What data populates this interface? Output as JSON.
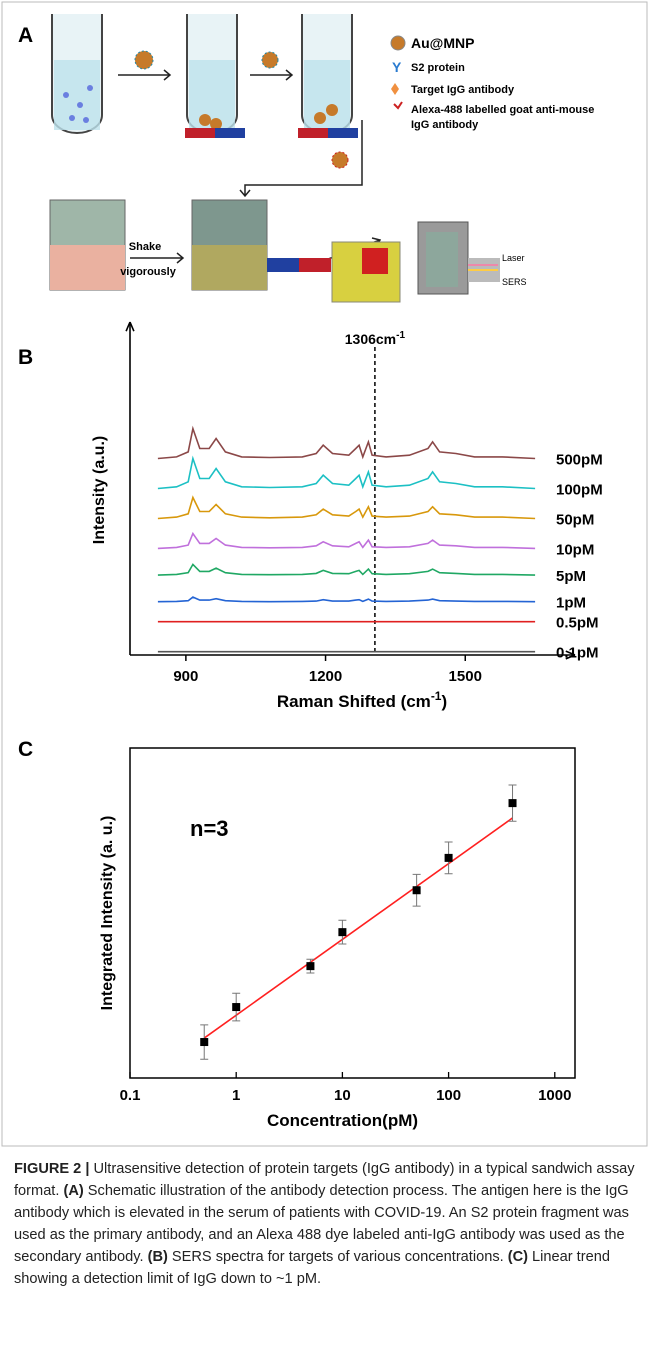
{
  "figure": {
    "panels": [
      "A",
      "B",
      "C"
    ],
    "legend": [
      {
        "lines": [
          "Au@MNP"
        ]
      },
      {
        "lines": [
          "S2 protein"
        ]
      },
      {
        "lines": [
          "Target IgG antibody"
        ]
      },
      {
        "lines": [
          "Alexa-488 labelled goat anti-mouse",
          "IgG antibody"
        ]
      }
    ],
    "step": [
      "Shake",
      "vigorously"
    ],
    "instrument": [
      "Laser",
      "SERS"
    ]
  },
  "chart_data": [
    {
      "type": "line",
      "xlabel": "Raman Shifted (cm",
      "xlabel_sup": "-1",
      "xlabel_end": ")",
      "ylabel": "Intensity (a.u.)",
      "annotation": {
        "text": "1306cm",
        "sup": "-1",
        "x": 1306
      },
      "xlim": [
        780,
        1725
      ],
      "ylim": [
        0,
        100
      ],
      "xticks": [
        900,
        1200,
        1500
      ],
      "x": [
        840,
        880,
        905,
        915,
        930,
        950,
        965,
        985,
        1020,
        1080,
        1150,
        1180,
        1195,
        1215,
        1250,
        1265,
        1272,
        1280,
        1292,
        1300,
        1330,
        1380,
        1420,
        1430,
        1445,
        1480,
        1520,
        1580,
        1650
      ],
      "series": [
        {
          "name": "500pM",
          "color": "#8b4848",
          "values": [
            59,
            59.5,
            61,
            68,
            62,
            62,
            65,
            61,
            59.5,
            59.3,
            59.5,
            60.5,
            63,
            60.5,
            60,
            62,
            63,
            59.5,
            64,
            60,
            59.5,
            60,
            62,
            64,
            61,
            60.5,
            59.5,
            59.5,
            59
          ]
        },
        {
          "name": "100pM",
          "color": "#1cc0c4",
          "values": [
            50,
            50.5,
            52,
            59,
            53,
            53,
            56,
            52,
            50.5,
            50.3,
            50.5,
            51.5,
            54,
            51.5,
            51,
            53,
            54,
            50.5,
            55,
            51,
            50.5,
            51,
            53,
            55,
            52,
            51.5,
            50.5,
            50.5,
            50
          ]
        },
        {
          "name": "50pM",
          "color": "#d8980c",
          "values": [
            41,
            41.4,
            42.4,
            47.3,
            43.1,
            43.1,
            45.2,
            42.4,
            41.4,
            41.2,
            41.4,
            42.1,
            43.8,
            42.1,
            41.7,
            43.1,
            43.8,
            41.4,
            44.5,
            41.7,
            41.4,
            41.7,
            43.1,
            44.5,
            42.4,
            42.1,
            41.4,
            41.4,
            41
          ]
        },
        {
          "name": "10pM",
          "color": "#c070dc",
          "values": [
            32,
            32.3,
            33,
            36.5,
            33.5,
            33.5,
            35,
            33,
            32.3,
            32.2,
            32.3,
            32.8,
            34,
            32.8,
            32.5,
            33.5,
            34,
            32.3,
            34.5,
            32.5,
            32.3,
            32.5,
            33.5,
            34.5,
            33,
            32.8,
            32.3,
            32.3,
            32
          ]
        },
        {
          "name": "5pM",
          "color": "#20a864",
          "values": [
            24,
            24.2,
            24.7,
            27.2,
            25.1,
            25.1,
            26.1,
            24.7,
            24.2,
            24.1,
            24.2,
            24.5,
            25.4,
            24.5,
            24.4,
            25.1,
            25.4,
            24.2,
            25.8,
            24.4,
            24.2,
            24.4,
            25.1,
            25.8,
            24.7,
            24.5,
            24.2,
            24.2,
            24
          ]
        },
        {
          "name": "1pM",
          "color": "#2464d4",
          "values": [
            16,
            16.1,
            16.3,
            17.4,
            16.5,
            16.5,
            16.9,
            16.3,
            16.1,
            16,
            16.1,
            16.2,
            16.6,
            16.2,
            16.2,
            16.5,
            16.6,
            16.1,
            16.8,
            16.2,
            16.1,
            16.2,
            16.5,
            16.8,
            16.3,
            16.2,
            16.1,
            16.1,
            16
          ]
        },
        {
          "name": "0.5pM",
          "color": "#e02020",
          "values": [
            10,
            10,
            10,
            10,
            10,
            10,
            10,
            10,
            10,
            10,
            10,
            10,
            10,
            10,
            10,
            10,
            10,
            10,
            10,
            10,
            10,
            10,
            10,
            10,
            10,
            10,
            10,
            10,
            10
          ]
        },
        {
          "name": "0.1pM",
          "color": "#555555",
          "values": [
            1,
            1,
            1,
            1,
            1,
            1,
            1,
            1,
            1,
            1,
            1,
            1,
            1,
            1,
            1,
            1,
            1,
            1,
            1,
            1,
            1,
            1,
            1,
            1,
            1,
            1,
            1,
            1,
            1
          ]
        }
      ]
    },
    {
      "type": "scatter",
      "xlabel": "Concentration(pM)",
      "ylabel": "Integrated Intensity (a. u.)",
      "annotation": "n=3",
      "xscale": "log",
      "xlim": [
        0.1,
        1550
      ],
      "ylim": [
        0,
        100
      ],
      "xticks": [
        0.1,
        1,
        10,
        100,
        1000
      ],
      "series": [
        {
          "color": "#000000",
          "x": [
            0.5,
            1,
            5,
            10,
            50,
            100,
            400
          ],
          "values": [
            10.9,
            21.5,
            33.9,
            44.2,
            56.9,
            66.7,
            83.3
          ],
          "errors": [
            5.2,
            4.2,
            2.1,
            3.6,
            4.8,
            4.8,
            5.5
          ]
        }
      ],
      "fit": {
        "color": "#ff2020",
        "x": [
          0.5,
          400
        ],
        "y": [
          12.1,
          78.8
        ]
      }
    }
  ],
  "caption": {
    "label": "FIGURE 2 |",
    "intro": " Ultrasensitive detection of protein targets (IgG antibody) in a typical sandwich assay format. ",
    "items": [
      {
        "ref": "(A)",
        "text": " Schematic illustration of the antibody detection process. The antigen here is the IgG antibody which is elevated in the serum of patients with COVID-19. An S2 protein fragment was used as the primary antibody, and an Alexa 488 dye labeled anti-IgG antibody was used as the secondary antibody. "
      },
      {
        "ref": "(B)",
        "text": " SERS spectra for targets of various concentrations. "
      },
      {
        "ref": "(C)",
        "text": " Linear trend showing a detection limit of IgG down to ~1 pM."
      }
    ]
  }
}
